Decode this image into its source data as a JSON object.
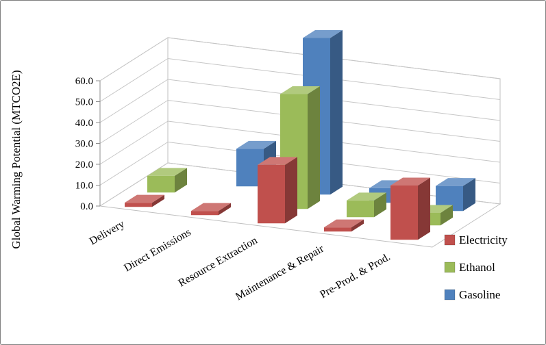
{
  "chart_data": {
    "type": "bar",
    "subtype": "3d-column",
    "title": "",
    "ylabel": "Global Warming Potential (MTCO2E)",
    "xlabel": "",
    "categories": [
      "Delivery",
      "Direct Emissions",
      "Resource Extraction",
      "Maintenance & Repair",
      "Pre-Prod. & Prod."
    ],
    "series": [
      {
        "name": "Electricity",
        "color": "#C0504D",
        "values": [
          2.0,
          2.0,
          28.0,
          2.0,
          26.0
        ]
      },
      {
        "name": "Ethanol",
        "color": "#9BBB59",
        "values": [
          8.0,
          0.0,
          55.0,
          8.0,
          6.0
        ]
      },
      {
        "name": "Gasoline",
        "color": "#4F81BD",
        "values": [
          0.0,
          18.0,
          75.0,
          7.0,
          12.0
        ]
      }
    ],
    "ylim": [
      0,
      60
    ],
    "ytick_step": 10,
    "ytick_labels": [
      "0.0",
      "10.0",
      "20.0",
      "30.0",
      "40.0",
      "50.0",
      "60.0"
    ],
    "grid": true,
    "legend_position": "right-bottom",
    "wall_color": "#ffffff",
    "gridline_color": "#c6c6c6",
    "axis_line_color": "#8c8c8c"
  }
}
